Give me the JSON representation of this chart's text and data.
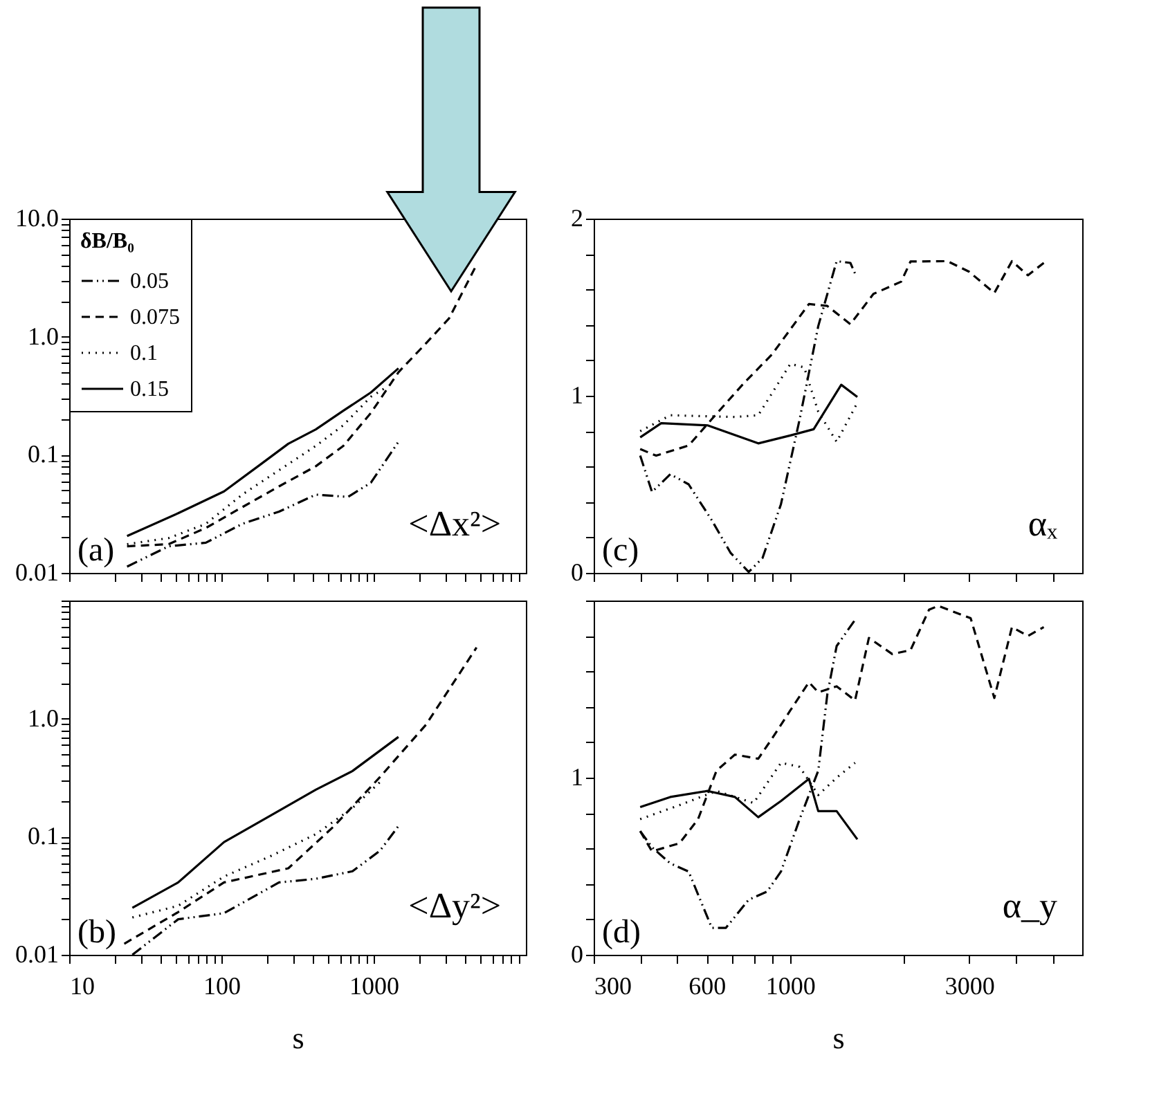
{
  "chart_data": [
    {
      "type": "line",
      "log": "xy",
      "xlim": [
        10,
        10000
      ],
      "ylim": [
        0.01,
        10
      ],
      "tick_labels": "y",
      "legend": "top left",
      "legend_title": "δB/B₀",
      "xticks": [
        10,
        {
          "value": 20,
          "label": null
        },
        {
          "value": 30,
          "label": null
        },
        {
          "value": 40,
          "label": null
        },
        {
          "value": 50,
          "label": null
        },
        {
          "value": 60,
          "label": null
        },
        {
          "value": 70,
          "label": null
        },
        {
          "value": 80,
          "label": null
        },
        {
          "value": 90,
          "label": null
        },
        100,
        {
          "value": 200,
          "label": null
        },
        {
          "value": 300,
          "label": null
        },
        {
          "value": 400,
          "label": null
        },
        {
          "value": 500,
          "label": null
        },
        {
          "value": 600,
          "label": null
        },
        {
          "value": 700,
          "label": null
        },
        {
          "value": 800,
          "label": null
        },
        {
          "value": 900,
          "label": null
        },
        1000,
        {
          "value": 2000,
          "label": null
        },
        {
          "value": 3000,
          "label": null
        },
        {
          "value": 4000,
          "label": null
        },
        {
          "value": 5000,
          "label": null
        },
        {
          "value": 6000,
          "label": null
        },
        {
          "value": 7000,
          "label": null
        },
        {
          "value": 8000,
          "label": null
        },
        {
          "value": 9000,
          "label": null
        }
      ],
      "yticks": [
        0.01,
        {
          "value": 0.02,
          "label": null
        },
        {
          "value": 0.03,
          "label": null
        },
        {
          "value": 0.04,
          "label": null
        },
        {
          "value": 0.05,
          "label": null
        },
        {
          "value": 0.06,
          "label": null
        },
        {
          "value": 0.07,
          "label": null
        },
        {
          "value": 0.08,
          "label": null
        },
        {
          "value": 0.09,
          "label": null
        },
        0.1,
        {
          "value": 0.2,
          "label": null
        },
        {
          "value": 0.3,
          "label": null
        },
        {
          "value": 0.4,
          "label": null
        },
        {
          "value": 0.5,
          "label": null
        },
        {
          "value": 0.6,
          "label": null
        },
        {
          "value": 0.7,
          "label": null
        },
        {
          "value": 0.8,
          "label": null
        },
        {
          "value": 0.9,
          "label": null
        },
        {
          "value": 1,
          "label": "1.0"
        },
        {
          "value": 2,
          "label": null
        },
        {
          "value": 3,
          "label": null
        },
        {
          "value": 4,
          "label": null
        },
        {
          "value": 5,
          "label": null
        },
        {
          "value": 6,
          "label": null
        },
        {
          "value": 7,
          "label": null
        },
        {
          "value": 8,
          "label": null
        },
        {
          "value": 9,
          "label": null
        },
        {
          "value": 10,
          "label": "10.0"
        }
      ],
      "annotations": [
        "(a)",
        "<Δx²>"
      ],
      "series": [
        {
          "name": "0.05",
          "color": "#000000",
          "line_style": "dashdot",
          "x": [
            24,
            45,
            79,
            137,
            239,
            417,
            678,
            959,
            1455
          ],
          "values": [
            0.0113,
            0.0168,
            0.018,
            0.026,
            0.033,
            0.046,
            0.044,
            0.058,
            0.129
          ]
        },
        {
          "name": "0.075",
          "color": "#000000",
          "line_style": "dashed",
          "x": [
            24,
            45,
            79,
            137,
            239,
            417,
            632,
            959,
            1455,
            2210,
            3130,
            4740
          ],
          "values": [
            0.0168,
            0.0175,
            0.024,
            0.036,
            0.054,
            0.08,
            0.119,
            0.226,
            0.5,
            0.88,
            1.43,
            4.06
          ]
        },
        {
          "name": "0.1",
          "color": "#000000",
          "line_style": "dotted",
          "x": [
            24,
            45,
            79,
            137,
            239,
            417,
            632,
            959,
            1180
          ],
          "values": [
            0.0175,
            0.0197,
            0.026,
            0.046,
            0.074,
            0.119,
            0.178,
            0.31,
            0.365
          ]
        },
        {
          "name": "0.15",
          "color": "#000000",
          "line_style": "solid",
          "x": [
            24,
            52,
            104,
            181,
            275,
            417,
            632,
            959,
            1455
          ],
          "values": [
            0.0205,
            0.032,
            0.049,
            0.083,
            0.124,
            0.164,
            0.236,
            0.337,
            0.54
          ]
        }
      ]
    },
    {
      "type": "line",
      "log": "x",
      "xlim": [
        300,
        6000
      ],
      "ylim": [
        0,
        2
      ],
      "tick_labels": "y",
      "xticks": [
        300,
        {
          "value": 400,
          "label": null
        },
        {
          "value": 500,
          "label": null
        },
        600,
        {
          "value": 700,
          "label": null
        },
        {
          "value": 800,
          "label": null
        },
        {
          "value": 900,
          "label": null
        },
        1000,
        {
          "value": 2000,
          "label": null
        },
        3000,
        {
          "value": 4000,
          "label": null
        },
        {
          "value": 5000,
          "label": null
        }
      ],
      "yticks": [
        0,
        {
          "value": 0.2,
          "label": null
        },
        {
          "value": 0.4,
          "label": null
        },
        {
          "value": 0.6,
          "label": null
        },
        {
          "value": 0.8,
          "label": null
        },
        1,
        {
          "value": 1.2,
          "label": null
        },
        {
          "value": 1.4,
          "label": null
        },
        {
          "value": 1.6,
          "label": null
        },
        {
          "value": 1.8,
          "label": null
        },
        2
      ],
      "annotations": [
        "(c)",
        "αₓ"
      ],
      "series": [
        {
          "color": "#000000",
          "line_style": "dashdot",
          "x": [
            399,
            429,
            480,
            537,
            619,
            694,
            776,
            845,
            946,
            1061,
            1189,
            1331,
            1448,
            1490
          ],
          "values": [
            0.662,
            0.457,
            0.557,
            0.5,
            0.297,
            0.114,
            0.005,
            0.084,
            0.388,
            0.868,
            1.393,
            1.76,
            1.75,
            1.69
          ]
        },
        {
          "color": "#000000",
          "line_style": "dashed",
          "x": [
            399,
            440,
            537,
            619,
            755,
            895,
            1123,
            1257,
            1448,
            1668,
            1977,
            2094,
            2624,
            3000,
            3500,
            3900,
            4300,
            4740
          ],
          "values": [
            0.699,
            0.662,
            0.719,
            0.868,
            1.073,
            1.233,
            1.518,
            1.507,
            1.404,
            1.575,
            1.644,
            1.758,
            1.76,
            1.7,
            1.58,
            1.76,
            1.68,
            1.75
          ]
        },
        {
          "color": "#000000",
          "line_style": "dotted",
          "x": [
            399,
            480,
            713,
            823,
            1002,
            1091,
            1189,
            1331,
            1511
          ],
          "values": [
            0.8,
            0.89,
            0.88,
            0.89,
            1.18,
            1.16,
            0.91,
            0.74,
            0.96
          ]
        },
        {
          "color": "#000000",
          "line_style": "solid",
          "x": [
            399,
            454,
            603,
            823,
            1002,
            1156,
            1369,
            1511
          ],
          "values": [
            0.765,
            0.845,
            0.833,
            0.731,
            0.776,
            0.811,
            1.062,
            0.993
          ]
        }
      ]
    },
    {
      "type": "line",
      "log": "xy",
      "xlim": [
        10,
        10000
      ],
      "ylim": [
        0.01,
        10
      ],
      "xlabel": "s",
      "xticks": [
        10,
        {
          "value": 20,
          "label": null
        },
        {
          "value": 30,
          "label": null
        },
        {
          "value": 40,
          "label": null
        },
        {
          "value": 50,
          "label": null
        },
        {
          "value": 60,
          "label": null
        },
        {
          "value": 70,
          "label": null
        },
        {
          "value": 80,
          "label": null
        },
        {
          "value": 90,
          "label": null
        },
        100,
        {
          "value": 200,
          "label": null
        },
        {
          "value": 300,
          "label": null
        },
        {
          "value": 400,
          "label": null
        },
        {
          "value": 500,
          "label": null
        },
        {
          "value": 600,
          "label": null
        },
        {
          "value": 700,
          "label": null
        },
        {
          "value": 800,
          "label": null
        },
        {
          "value": 900,
          "label": null
        },
        1000,
        {
          "value": 2000,
          "label": null
        },
        {
          "value": 3000,
          "label": null
        },
        {
          "value": 4000,
          "label": null
        },
        {
          "value": 5000,
          "label": null
        },
        {
          "value": 6000,
          "label": null
        },
        {
          "value": 7000,
          "label": null
        },
        {
          "value": 8000,
          "label": null
        },
        {
          "value": 9000,
          "label": null
        }
      ],
      "yticks": [
        0.01,
        {
          "value": 0.02,
          "label": null
        },
        {
          "value": 0.03,
          "label": null
        },
        {
          "value": 0.04,
          "label": null
        },
        {
          "value": 0.05,
          "label": null
        },
        {
          "value": 0.06,
          "label": null
        },
        {
          "value": 0.07,
          "label": null
        },
        {
          "value": 0.08,
          "label": null
        },
        {
          "value": 0.09,
          "label": null
        },
        0.1,
        {
          "value": 0.2,
          "label": null
        },
        {
          "value": 0.3,
          "label": null
        },
        {
          "value": 0.4,
          "label": null
        },
        {
          "value": 0.5,
          "label": null
        },
        {
          "value": 0.6,
          "label": null
        },
        {
          "value": 0.7,
          "label": null
        },
        {
          "value": 0.8,
          "label": null
        },
        {
          "value": 0.9,
          "label": null
        },
        {
          "value": 1,
          "label": "1.0"
        },
        {
          "value": 2,
          "label": null
        },
        {
          "value": 3,
          "label": null
        },
        {
          "value": 4,
          "label": null
        },
        {
          "value": 5,
          "label": null
        },
        {
          "value": 6,
          "label": null
        },
        {
          "value": 7,
          "label": null
        },
        {
          "value": 8,
          "label": null
        },
        {
          "value": 9,
          "label": null
        },
        {
          "value": 10,
          "label": null
        }
      ],
      "annotations": [
        "(b)",
        "<Δy²>"
      ],
      "series": [
        {
          "color": "#000000",
          "line_style": "dashdot",
          "x": [
            26,
            52,
            104,
            239,
            417,
            726,
            1100,
            1455
          ],
          "values": [
            0.01,
            0.02,
            0.0225,
            0.041,
            0.044,
            0.051,
            0.076,
            0.123
          ]
        },
        {
          "color": "#000000",
          "line_style": "dashed",
          "x": [
            23,
            52,
            104,
            275,
            550,
            1100,
            2210,
            4740
          ],
          "values": [
            0.0124,
            0.023,
            0.041,
            0.054,
            0.123,
            0.32,
            0.89,
            4.0
          ]
        },
        {
          "color": "#000000",
          "line_style": "dotted",
          "x": [
            26,
            52,
            104,
            208,
            417,
            726,
            1100
          ],
          "values": [
            0.0207,
            0.026,
            0.046,
            0.068,
            0.105,
            0.175,
            0.29
          ]
        },
        {
          "color": "#000000",
          "line_style": "solid",
          "x": [
            26,
            52,
            104,
            208,
            417,
            726,
            1455
          ],
          "values": [
            0.025,
            0.041,
            0.09,
            0.15,
            0.25,
            0.36,
            0.7
          ]
        }
      ]
    },
    {
      "type": "line",
      "log": "x",
      "xlim": [
        300,
        6000
      ],
      "ylim": [
        0,
        2
      ],
      "xlabel": "s",
      "xticks": [
        300,
        {
          "value": 400,
          "label": null
        },
        {
          "value": 500,
          "label": null
        },
        600,
        {
          "value": 700,
          "label": null
        },
        {
          "value": 800,
          "label": null
        },
        {
          "value": 900,
          "label": null
        },
        1000,
        {
          "value": 2000,
          "label": null
        },
        3000,
        {
          "value": 4000,
          "label": null
        },
        {
          "value": 5000,
          "label": null
        }
      ],
      "yticks": [
        0,
        {
          "value": 0.2,
          "label": null
        },
        {
          "value": 0.4,
          "label": null
        },
        {
          "value": 0.6,
          "label": null
        },
        {
          "value": 0.8,
          "label": null
        },
        1,
        {
          "value": 1.2,
          "label": null
        },
        {
          "value": 1.4,
          "label": null
        },
        {
          "value": 1.6,
          "label": null
        },
        {
          "value": 1.8,
          "label": null
        },
        {
          "value": 2,
          "label": null
        }
      ],
      "annotations": [
        "(d)",
        "α_y"
      ],
      "series": [
        {
          "color": "#000000",
          "line_style": "dashdot",
          "x": [
            399,
            429,
            480,
            537,
            619,
            675,
            776,
            869,
            946,
            1061,
            1189,
            1257,
            1331,
            1490
          ],
          "values": [
            0.698,
            0.607,
            0.516,
            0.47,
            0.152,
            0.152,
            0.311,
            0.357,
            0.47,
            0.766,
            1.039,
            1.47,
            1.743,
            1.891
          ]
        },
        {
          "color": "#000000",
          "line_style": "dashed",
          "x": [
            399,
            429,
            508,
            569,
            637,
            713,
            823,
            895,
            1002,
            1123,
            1189,
            1331,
            1490,
            1622,
            1872,
            2094,
            2345,
            2482,
            3028,
            3500,
            3900,
            4300,
            4740
          ],
          "values": [
            0.698,
            0.584,
            0.63,
            0.766,
            1.039,
            1.13,
            1.107,
            1.22,
            1.38,
            1.539,
            1.482,
            1.516,
            1.436,
            1.789,
            1.698,
            1.72,
            1.948,
            1.97,
            1.9,
            1.45,
            1.85,
            1.8,
            1.85
          ]
        },
        {
          "color": "#000000",
          "line_style": "dotted",
          "x": [
            399,
            508,
            637,
            800,
            946,
            1061,
            1189,
            1331,
            1490
          ],
          "values": [
            0.766,
            0.845,
            0.925,
            0.857,
            1.084,
            1.061,
            0.902,
            1.0,
            1.084
          ]
        },
        {
          "color": "#000000",
          "line_style": "solid",
          "x": [
            399,
            480,
            603,
            713,
            823,
            946,
            1123,
            1189,
            1331,
            1511
          ],
          "values": [
            0.834,
            0.891,
            0.925,
            0.891,
            0.777,
            0.868,
            0.993,
            0.811,
            0.811,
            0.652
          ]
        }
      ]
    }
  ]
}
